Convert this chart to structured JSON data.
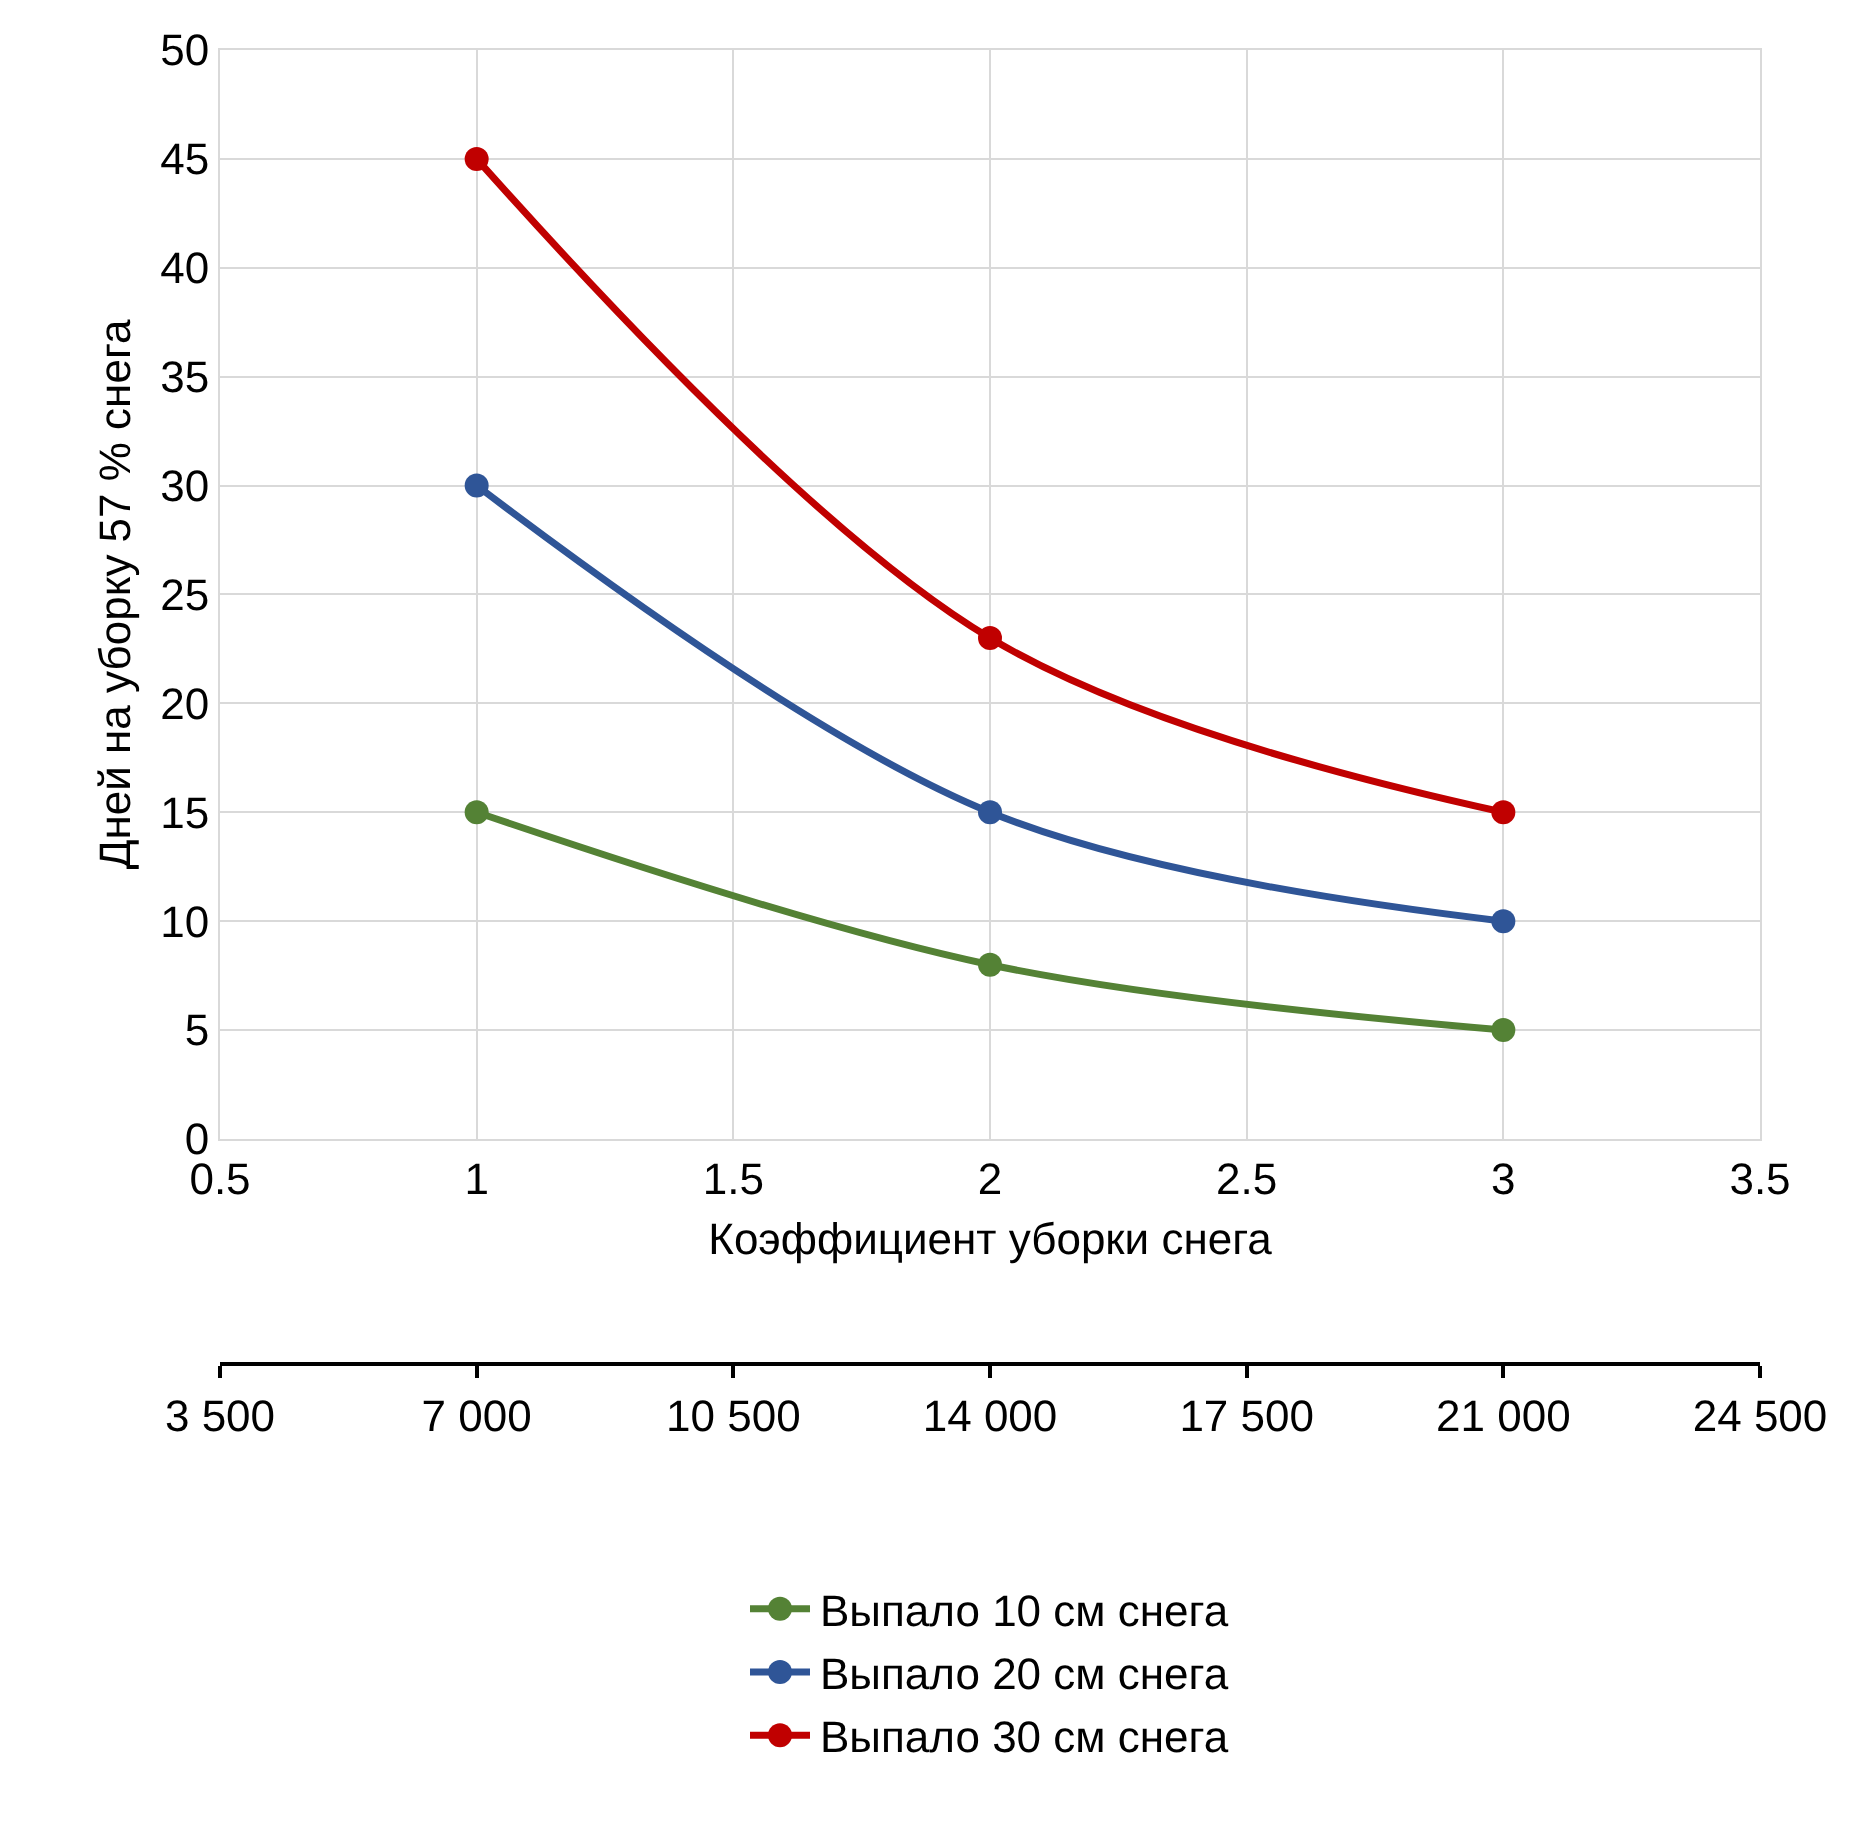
{
  "chart_data": {
    "type": "line",
    "xlabel": "Коэффициент уборки снега",
    "ylabel": "Дней на уборку 57 % снега",
    "x": [
      1,
      2,
      3
    ],
    "series": [
      {
        "name": "Выпало 10 см снега",
        "color": "#548235",
        "values": [
          15,
          8,
          5
        ]
      },
      {
        "name": "Выпало 20 см снега",
        "color": "#2f5597",
        "values": [
          30,
          15,
          10
        ]
      },
      {
        "name": "Выпало 30 см снега",
        "color": "#c00000",
        "values": [
          45,
          23,
          15
        ]
      }
    ],
    "xlim": [
      0.5,
      3.5
    ],
    "xticks": [
      0.5,
      1,
      1.5,
      2,
      2.5,
      3,
      3.5
    ],
    "ylim": [
      0,
      50
    ],
    "yticks": [
      0,
      5,
      10,
      15,
      20,
      25,
      30,
      35,
      40,
      45,
      50
    ],
    "x2lim": [
      3500,
      24500
    ],
    "x2ticks": [
      {
        "value": 3500,
        "label": "3 500"
      },
      {
        "value": 7000,
        "label": "7 000"
      },
      {
        "value": 10500,
        "label": "10 500"
      },
      {
        "value": 14000,
        "label": "14 000"
      },
      {
        "value": 17500,
        "label": "17 500"
      },
      {
        "value": 21000,
        "label": "21 000"
      },
      {
        "value": 24500,
        "label": "24 500"
      }
    ],
    "grid": true,
    "legend": "bottom",
    "marker": "circle",
    "line_style": "solid"
  }
}
